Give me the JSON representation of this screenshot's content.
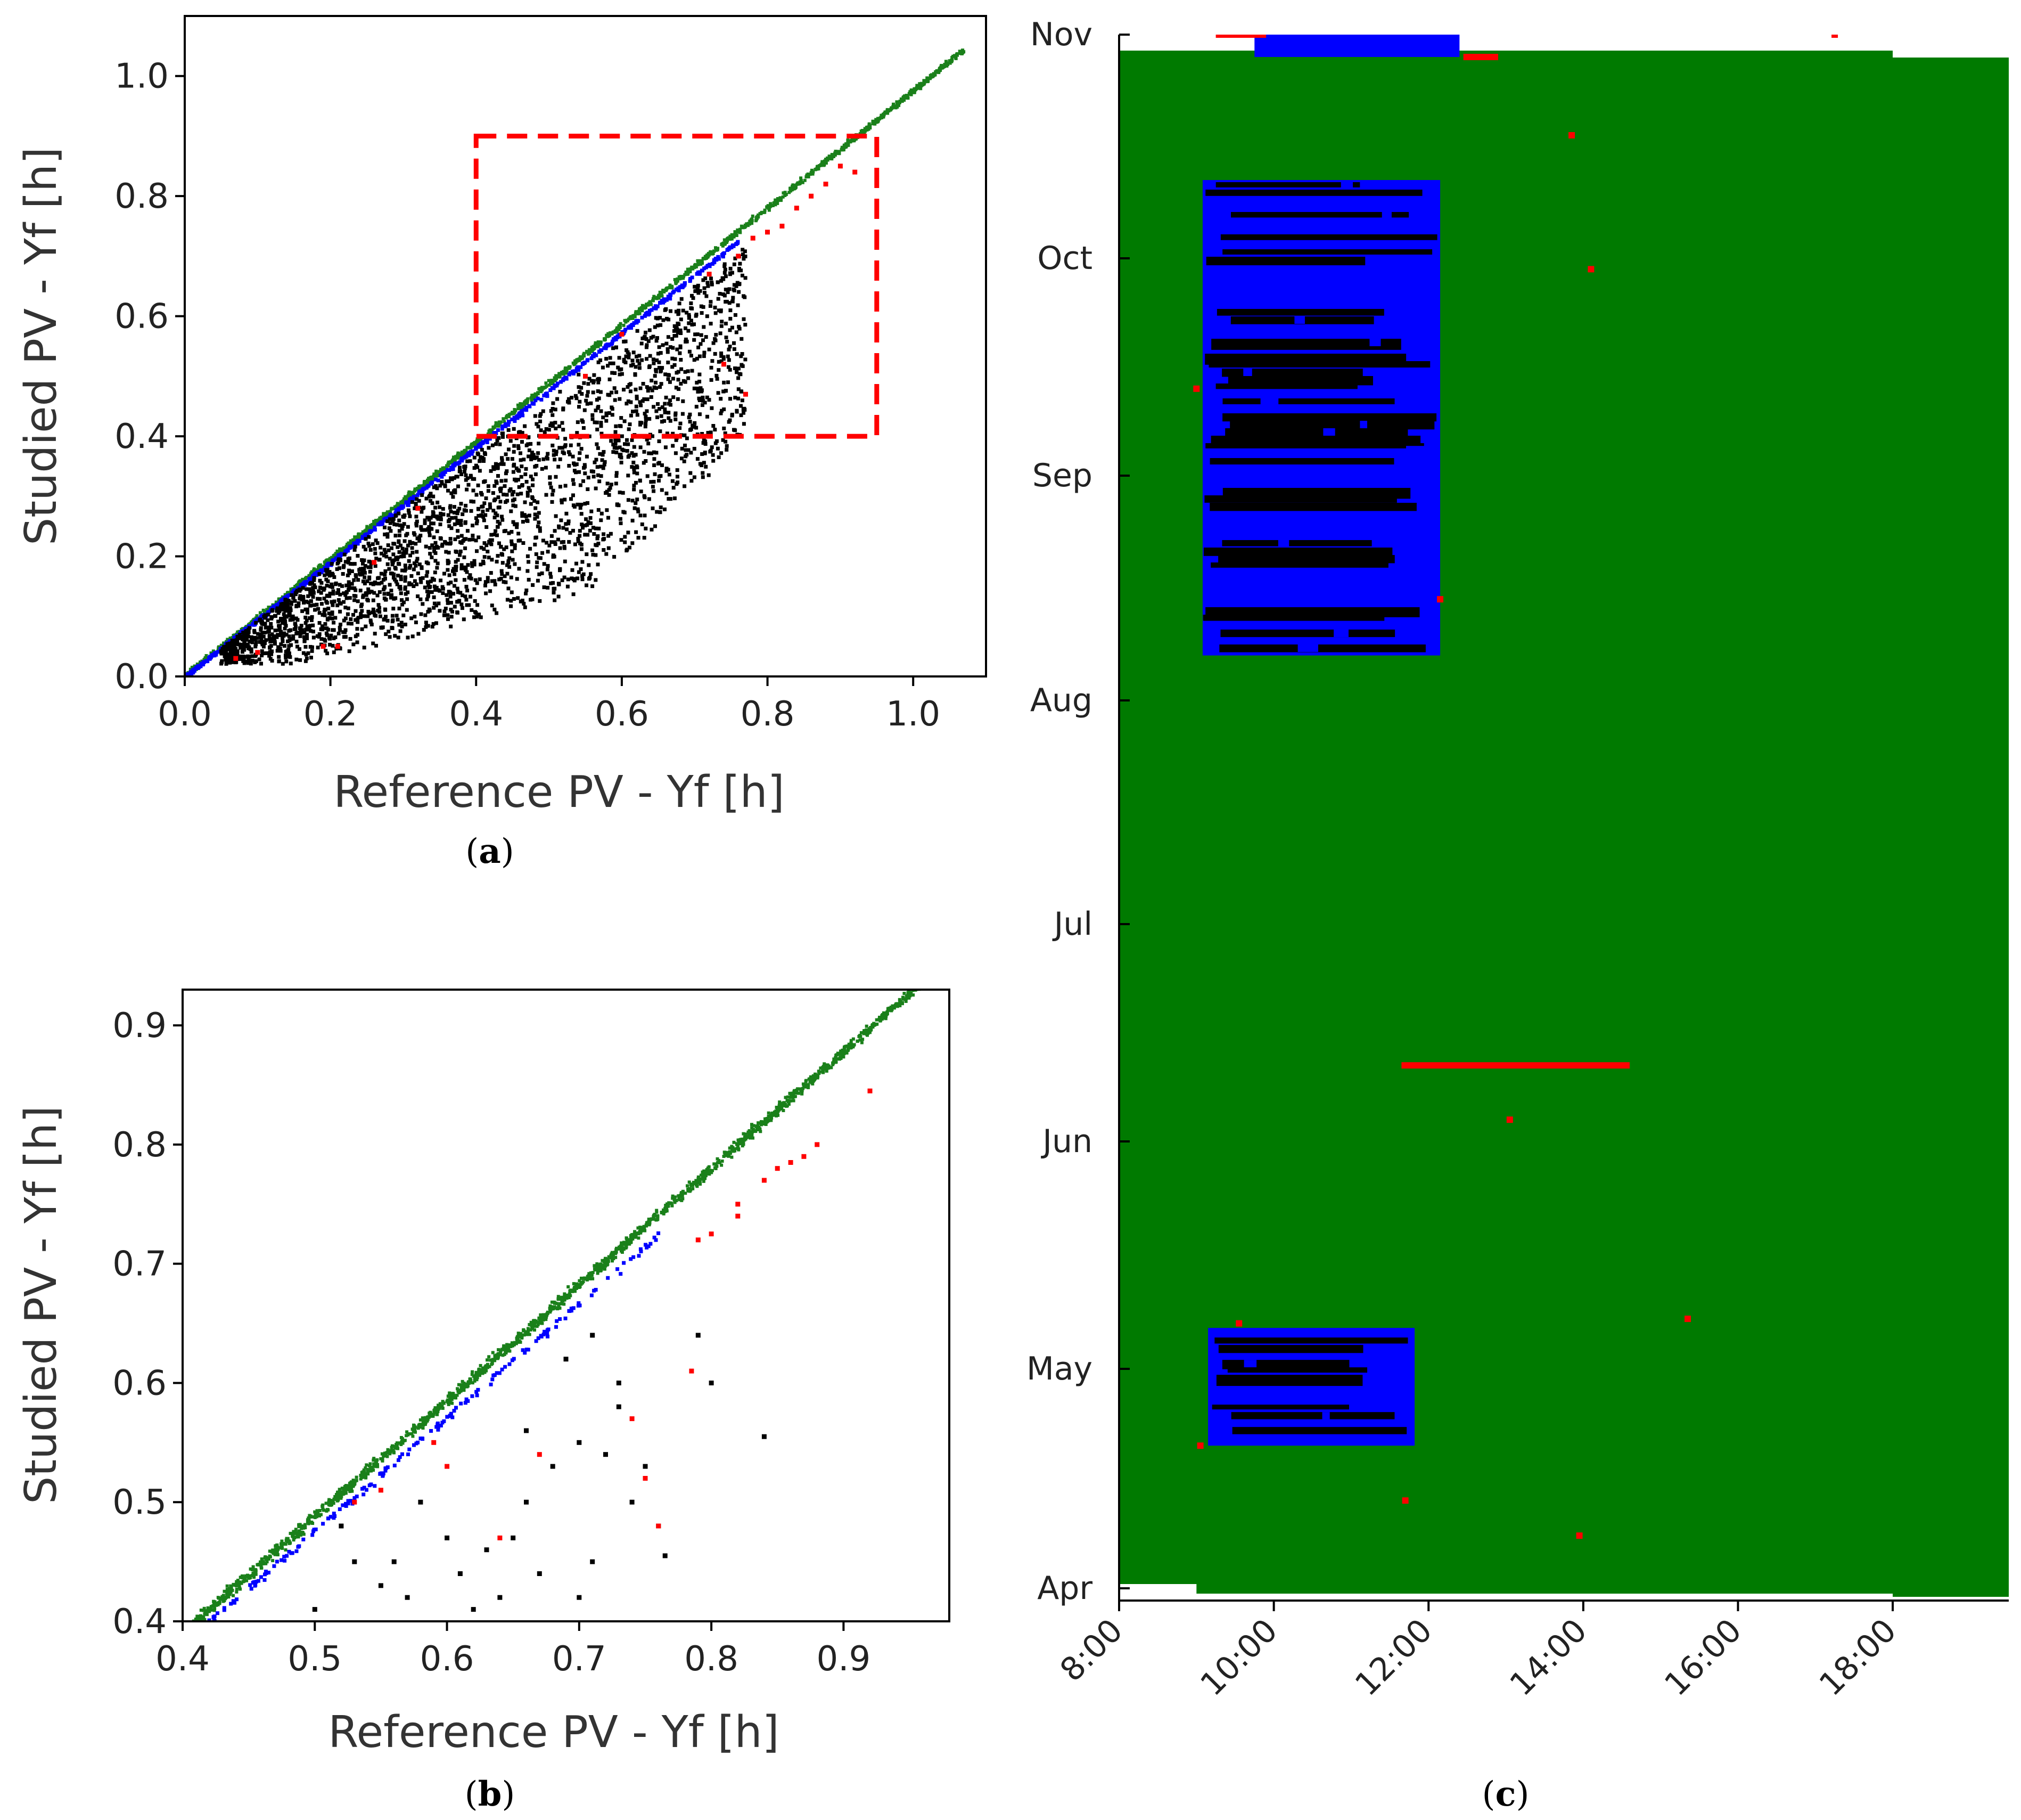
{
  "colors": {
    "normal": "#1a801a",
    "blue": "#0000ff",
    "black": "#000000",
    "red": "#ff0000",
    "bg": "#007a00"
  },
  "panel_a": {
    "label_open": "(",
    "label_letter": "a",
    "label_close": ")"
  },
  "panel_b": {
    "label_open": "(",
    "label_letter": "b",
    "label_close": ")"
  },
  "panel_c": {
    "label_open": "(",
    "label_letter": "c",
    "label_close": ")"
  },
  "chart_data": [
    {
      "id": "a",
      "type": "scatter",
      "xlabel": "Reference PV - Yf [h]",
      "ylabel": "Studied PV - Yf [h]",
      "xlim": [
        0,
        1.1
      ],
      "ylim": [
        0,
        1.1
      ],
      "xticks": [
        "0.0",
        "0.2",
        "0.4",
        "0.6",
        "0.8",
        "1.0"
      ],
      "xtick_values": [
        0,
        0.2,
        0.4,
        0.6,
        0.8,
        1.0
      ],
      "yticks": [
        "0.0",
        "0.2",
        "0.4",
        "0.6",
        "0.8",
        "1.0"
      ],
      "ytick_values": [
        0,
        0.2,
        0.4,
        0.6,
        0.8,
        1.0
      ],
      "zoom_box": {
        "x0": 0.4,
        "x1": 0.95,
        "y0": 0.4,
        "y1": 0.9
      },
      "series": [
        {
          "name": "normal",
          "color": "green"
        },
        {
          "name": "blue",
          "color": "blue"
        },
        {
          "name": "black",
          "color": "black"
        },
        {
          "name": "red",
          "color": "red",
          "points": [
            [
              0.07,
              0.03
            ],
            [
              0.1,
              0.04
            ],
            [
              0.19,
              0.05
            ],
            [
              0.21,
              0.05
            ],
            [
              0.26,
              0.19
            ],
            [
              0.32,
              0.28
            ],
            [
              0.55,
              0.5
            ],
            [
              0.6,
              0.57
            ],
            [
              0.72,
              0.67
            ],
            [
              0.76,
              0.7
            ],
            [
              0.78,
              0.73
            ],
            [
              0.8,
              0.74
            ],
            [
              0.82,
              0.75
            ],
            [
              0.84,
              0.78
            ],
            [
              0.86,
              0.8
            ],
            [
              0.88,
              0.82
            ],
            [
              0.9,
              0.85
            ],
            [
              0.92,
              0.84
            ],
            [
              0.74,
              0.52
            ],
            [
              0.77,
              0.47
            ]
          ]
        }
      ]
    },
    {
      "id": "b",
      "type": "scatter",
      "xlabel": "Reference PV - Yf [h]",
      "ylabel": "Studied PV - Yf [h]",
      "xlim": [
        0.4,
        0.98
      ],
      "ylim": [
        0.4,
        0.93
      ],
      "xticks": [
        "0.4",
        "0.5",
        "0.6",
        "0.7",
        "0.8",
        "0.9"
      ],
      "xtick_values": [
        0.4,
        0.5,
        0.6,
        0.7,
        0.8,
        0.9
      ],
      "yticks": [
        "0.4",
        "0.5",
        "0.6",
        "0.7",
        "0.8",
        "0.9"
      ],
      "ytick_values": [
        0.4,
        0.5,
        0.6,
        0.7,
        0.8,
        0.9
      ],
      "series": [
        {
          "name": "normal",
          "color": "green"
        },
        {
          "name": "blue",
          "color": "blue"
        },
        {
          "name": "black",
          "color": "black",
          "points": [
            [
              0.84,
              0.555
            ],
            [
              0.79,
              0.64
            ],
            [
              0.8,
              0.6
            ],
            [
              0.75,
              0.53
            ],
            [
              0.76,
              0.48
            ],
            [
              0.765,
              0.455
            ],
            [
              0.73,
              0.6
            ],
            [
              0.72,
              0.54
            ],
            [
              0.74,
              0.5
            ],
            [
              0.7,
              0.55
            ],
            [
              0.68,
              0.53
            ],
            [
              0.66,
              0.5
            ],
            [
              0.65,
              0.47
            ],
            [
              0.63,
              0.46
            ],
            [
              0.62,
              0.41
            ],
            [
              0.6,
              0.47
            ],
            [
              0.58,
              0.5
            ],
            [
              0.56,
              0.45
            ],
            [
              0.55,
              0.43
            ],
            [
              0.53,
              0.45
            ],
            [
              0.52,
              0.48
            ],
            [
              0.5,
              0.41
            ],
            [
              0.57,
              0.42
            ],
            [
              0.66,
              0.56
            ],
            [
              0.69,
              0.62
            ],
            [
              0.71,
              0.64
            ],
            [
              0.73,
              0.58
            ],
            [
              0.67,
              0.44
            ],
            [
              0.71,
              0.45
            ],
            [
              0.7,
              0.42
            ],
            [
              0.64,
              0.42
            ],
            [
              0.61,
              0.44
            ]
          ]
        },
        {
          "name": "red",
          "color": "red",
          "points": [
            [
              0.92,
              0.845
            ],
            [
              0.88,
              0.8
            ],
            [
              0.87,
              0.79
            ],
            [
              0.86,
              0.785
            ],
            [
              0.85,
              0.78
            ],
            [
              0.84,
              0.77
            ],
            [
              0.82,
              0.75
            ],
            [
              0.82,
              0.74
            ],
            [
              0.8,
              0.725
            ],
            [
              0.79,
              0.72
            ],
            [
              0.785,
              0.61
            ],
            [
              0.74,
              0.57
            ],
            [
              0.75,
              0.52
            ],
            [
              0.76,
              0.48
            ],
            [
              0.67,
              0.54
            ],
            [
              0.64,
              0.47
            ],
            [
              0.6,
              0.53
            ],
            [
              0.59,
              0.55
            ],
            [
              0.53,
              0.5
            ],
            [
              0.55,
              0.51
            ]
          ]
        }
      ]
    },
    {
      "id": "c",
      "type": "heatmap",
      "xlabel": "",
      "ylabel": "",
      "xlim": [
        8,
        19.5
      ],
      "xticks": [
        "8:00",
        "10:00",
        "12:00",
        "14:00",
        "16:00",
        "18:00"
      ],
      "xtick_values": [
        8,
        10,
        12,
        14,
        16,
        18
      ],
      "ylim": [
        0,
        7
      ],
      "yticks": [
        "Nov",
        "Oct",
        "Sep",
        "Aug",
        "Jul",
        "Jun",
        "May",
        "Apr"
      ],
      "ytick_values": [
        7,
        6,
        5,
        4,
        3,
        2,
        1,
        0
      ],
      "regions": [
        {
          "name": "fault-block-nov",
          "t0": 9.75,
          "t1": 12.4,
          "m0": 6.9,
          "m1": 7.35
        },
        {
          "name": "fault-block-sep-oct",
          "t0": 9.08,
          "t1": 12.15,
          "m0": 4.2,
          "m1": 6.35
        },
        {
          "name": "fault-block-may",
          "t0": 9.15,
          "t1": 11.82,
          "m0": 0.65,
          "m1": 1.18
        }
      ],
      "red_events": [
        {
          "t0": 9.25,
          "t1": 9.9,
          "m": 7.22
        },
        {
          "t0": 12.45,
          "t1": 12.9,
          "m": 6.9
        },
        {
          "t0": 11.65,
          "t1": 14.6,
          "m": 2.35
        },
        {
          "t0": 17.25,
          "t1": 17.25,
          "m": 7.1
        },
        {
          "t0": 13.85,
          "t1": 13.85,
          "m": 6.55
        },
        {
          "t0": 14.1,
          "t1": 14.1,
          "m": 5.95
        },
        {
          "t0": 9.0,
          "t1": 9.0,
          "m": 5.4
        },
        {
          "t0": 12.15,
          "t1": 12.15,
          "m": 4.45
        },
        {
          "t0": 13.05,
          "t1": 13.05,
          "m": 2.1
        },
        {
          "t0": 9.55,
          "t1": 9.55,
          "m": 1.2
        },
        {
          "t0": 15.35,
          "t1": 15.35,
          "m": 1.22
        },
        {
          "t0": 9.05,
          "t1": 9.05,
          "m": 0.65
        },
        {
          "t0": 11.7,
          "t1": 11.7,
          "m": 0.4
        },
        {
          "t0": 13.95,
          "t1": 13.95,
          "m": 0.24
        }
      ]
    }
  ]
}
